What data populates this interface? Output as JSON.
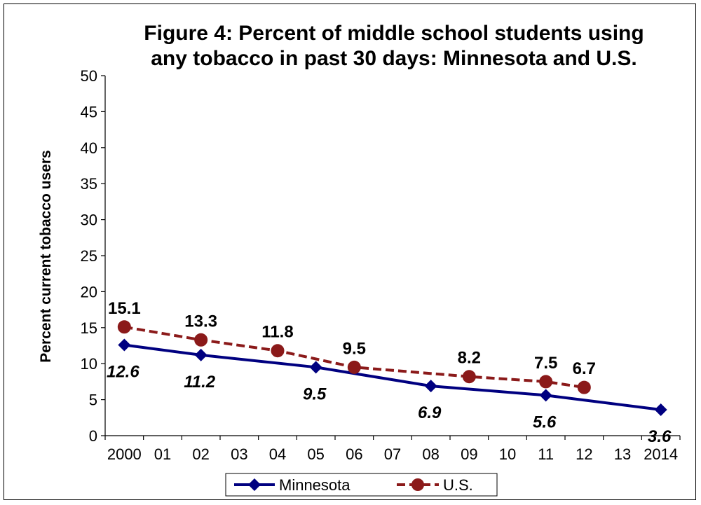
{
  "chart_data": {
    "type": "line",
    "title_line1": "Figure 4: Percent of middle school students using",
    "title_line2": "any tobacco in past 30 days: Minnesota and U.S.",
    "ylabel": "Percent current tobacco users",
    "xlabel": "",
    "ylim": [
      0,
      50
    ],
    "yticks": [
      0,
      5,
      10,
      15,
      20,
      25,
      30,
      35,
      40,
      45,
      50
    ],
    "categories": [
      "2000",
      "01",
      "02",
      "03",
      "04",
      "05",
      "06",
      "07",
      "08",
      "09",
      "10",
      "11",
      "12",
      "13",
      "2014"
    ],
    "grid": false,
    "legend_position": "bottom",
    "series": [
      {
        "name": "Minnesota",
        "color": "#000080",
        "line_style": "solid",
        "marker": "diamond",
        "label_style": "bold-italic",
        "points": [
          {
            "x": "2000",
            "y": 12.6,
            "label": "12.6"
          },
          {
            "x": "02",
            "y": 11.2,
            "label": "11.2"
          },
          {
            "x": "05",
            "y": 9.5,
            "label": "9.5"
          },
          {
            "x": "08",
            "y": 6.9,
            "label": "6.9"
          },
          {
            "x": "11",
            "y": 5.6,
            "label": "5.6"
          },
          {
            "x": "2014",
            "y": 3.6,
            "label": "3.6"
          }
        ]
      },
      {
        "name": "U.S.",
        "color": "#8B1A1A",
        "line_style": "dashed",
        "marker": "circle",
        "label_style": "bold",
        "points": [
          {
            "x": "2000",
            "y": 15.1,
            "label": "15.1"
          },
          {
            "x": "02",
            "y": 13.3,
            "label": "13.3"
          },
          {
            "x": "04",
            "y": 11.8,
            "label": "11.8"
          },
          {
            "x": "06",
            "y": 9.5,
            "label": "9.5"
          },
          {
            "x": "09",
            "y": 8.2,
            "label": "8.2"
          },
          {
            "x": "11",
            "y": 7.5,
            "label": "7.5"
          },
          {
            "x": "12",
            "y": 6.7,
            "label": "6.7"
          }
        ]
      }
    ]
  }
}
